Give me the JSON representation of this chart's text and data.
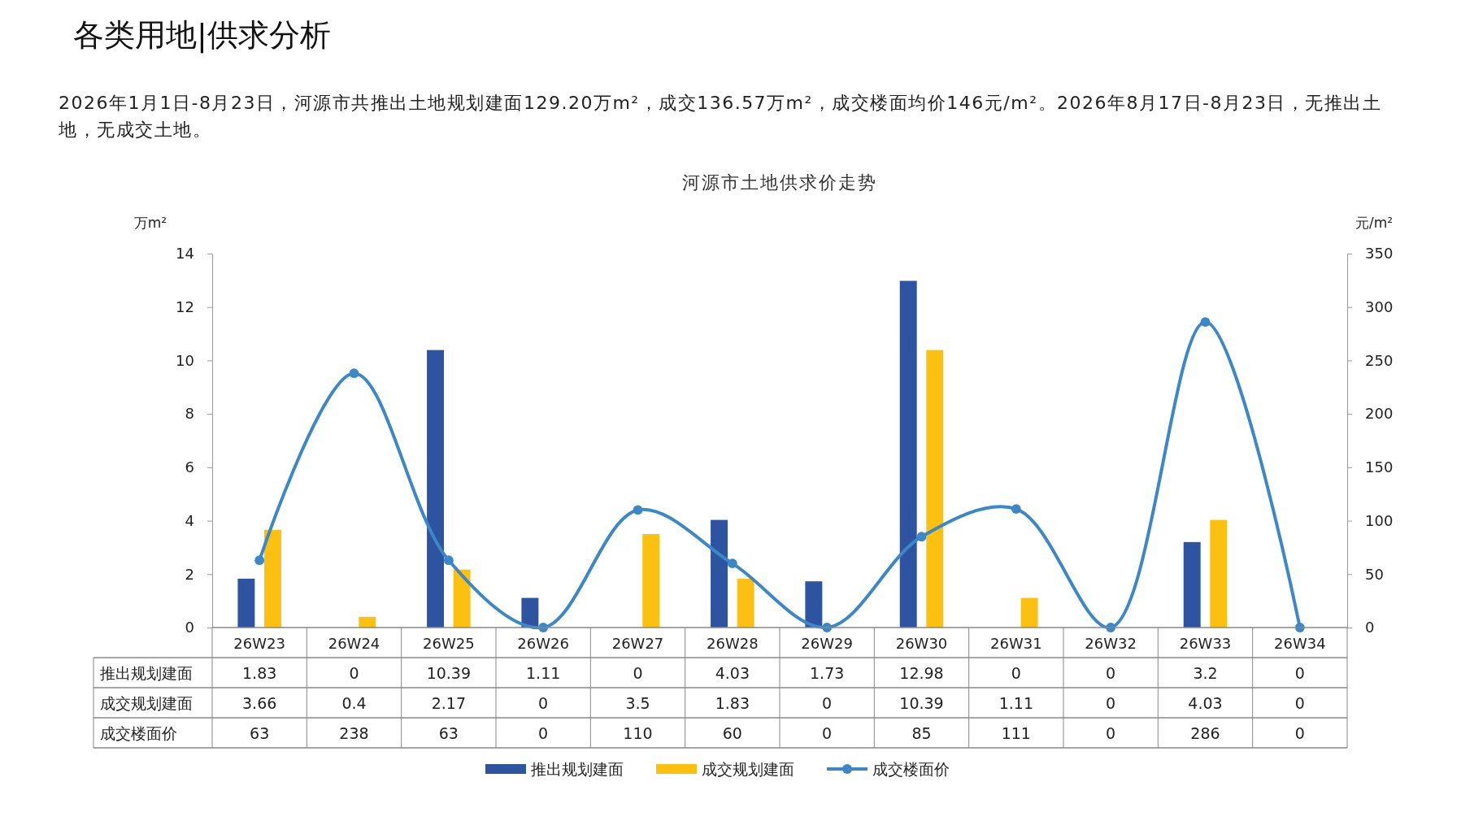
{
  "chart_data": {
    "type": "bar",
    "title": "河源市土地供求价走势",
    "annotations": [
      "各类用地|供求分析",
      "2026年1月1日-8月23日，河源市共推出土地规划建面129.20万m²，成交136.57万m²，成交楼面均价146元/m²。2026年8月17日-8月23日，无推出土地，无成交土地。"
    ],
    "ylabel": "万m²",
    "y2label": "元/m²",
    "categories": [
      "26W23",
      "26W24",
      "26W25",
      "26W26",
      "26W27",
      "26W28",
      "26W29",
      "26W30",
      "26W31",
      "26W32",
      "26W33",
      "26W34"
    ],
    "series": [
      {
        "name": "推出规划建面",
        "color": "#2e54a1",
        "values": [
          1.83,
          0,
          10.39,
          1.11,
          0,
          4.03,
          1.73,
          12.98,
          0,
          0,
          3.2,
          0
        ]
      },
      {
        "name": "成交规划建面",
        "color": "#fcc010",
        "values": [
          3.66,
          0.4,
          2.17,
          0,
          3.5,
          1.83,
          0,
          10.39,
          1.11,
          0,
          4.03,
          0
        ]
      },
      {
        "name": "成交楼面价",
        "type": "line",
        "axis": "y2",
        "color": "#3b87c8",
        "values": [
          63,
          238,
          63,
          0,
          110,
          60,
          0,
          85,
          111,
          0,
          286,
          0
        ]
      }
    ],
    "ylim": [
      0,
      14
    ],
    "yticks": [
      0,
      2,
      4,
      6,
      8,
      10,
      12,
      14
    ],
    "y2lim": [
      0,
      350
    ],
    "y2ticks": [
      0,
      50,
      100,
      150,
      200,
      250,
      300,
      350
    ],
    "data_labels": true,
    "legend": "bottom",
    "marker": "circle",
    "grid": false
  }
}
